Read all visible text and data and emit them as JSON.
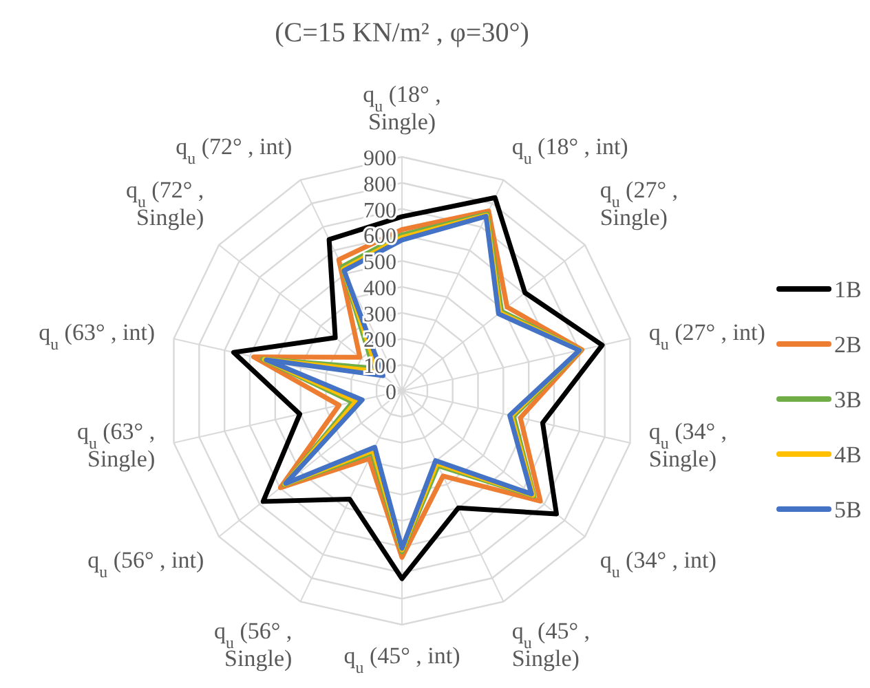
{
  "chart_data": {
    "type": "radar",
    "title": "(C=15 KN/m² , φ=30°)",
    "categories": [
      "q$_{u}$ (18° , Single)",
      "q$_{u}$ (18° , int)",
      "q$_{u}$ (27° , Single)",
      "q$_{u}$ (27° , int)",
      "q$_{u}$ (34° , Single)",
      "q$_{u}$ (34° , int)",
      "q$_{u}$ (45° , Single)",
      "q$_{u}$ (45° , int)",
      "q$_{u}$ (56° , Single)",
      "q$_{u}$ (56° , int)",
      "q$_{u}$ (63° , Single)",
      "q$_{u}$ (63° , int)",
      "q$_{u}$ (72° , Single)",
      "q$_{u}$ (72° , int)"
    ],
    "ylim": [
      0,
      900
    ],
    "yticks": [
      0,
      100,
      200,
      300,
      400,
      500,
      600,
      700,
      800,
      900
    ],
    "grid": true,
    "legend": "right",
    "marker": "none",
    "series": [
      {
        "name": "1B",
        "color": "#000000",
        "values": [
          670,
          825,
          605,
          790,
          555,
          760,
          500,
          723,
          463,
          683,
          403,
          664,
          328,
          646
        ]
      },
      {
        "name": "2B",
        "color": "#ed7d31",
        "values": [
          620,
          768,
          517,
          710,
          467,
          681,
          364,
          641,
          290,
          598,
          248,
          585,
          207,
          560
        ]
      },
      {
        "name": "3B",
        "color": "#70ad47",
        "values": [
          600,
          755,
          490,
          703,
          440,
          650,
          320,
          620,
          265,
          580,
          195,
          550,
          140,
          530
        ]
      },
      {
        "name": "4B",
        "color": "#ffc000",
        "values": [
          590,
          750,
          482,
          702,
          432,
          645,
          310,
          612,
          255,
          576,
          180,
          543,
          120,
          520
        ]
      },
      {
        "name": "5B",
        "color": "#4472c4",
        "values": [
          580,
          745,
          475,
          700,
          425,
          637,
          298,
          606,
          241,
          572,
          157,
          535,
          93,
          513
        ]
      }
    ]
  }
}
